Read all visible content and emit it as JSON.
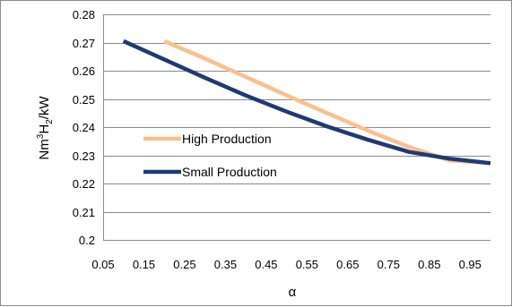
{
  "chart_data": {
    "type": "line",
    "title": "",
    "xlabel": "α",
    "ylabel": "Nm³H₂/kW",
    "ylabel_parts": {
      "base": "Nm",
      "sup": "3",
      "mid": "H",
      "sub": "2",
      "tail": "/kW"
    },
    "xlim": [
      0.05,
      1.0
    ],
    "ylim": [
      0.2,
      0.28
    ],
    "x_ticks": [
      "0.05",
      "0.15",
      "0.25",
      "0.35",
      "0.45",
      "0.55",
      "0.65",
      "0.75",
      "0.85",
      "0.95"
    ],
    "x_tick_values": [
      0.05,
      0.15,
      0.25,
      0.35,
      0.45,
      0.55,
      0.65,
      0.75,
      0.85,
      0.95
    ],
    "y_ticks": [
      "0.2",
      "0.21",
      "0.22",
      "0.23",
      "0.24",
      "0.25",
      "0.26",
      "0.27",
      "0.28"
    ],
    "y_tick_values": [
      0.2,
      0.21,
      0.22,
      0.23,
      0.24,
      0.25,
      0.26,
      0.27,
      0.28
    ],
    "grid": "horizontal",
    "legend_position": "inside-left",
    "series": [
      {
        "name": "High Production",
        "color": "#F9C08F",
        "x": [
          0.2,
          0.3,
          0.4,
          0.5,
          0.6,
          0.7,
          0.8,
          0.9,
          1.0
        ],
        "y": [
          0.2705,
          0.2643,
          0.2578,
          0.2513,
          0.2449,
          0.2387,
          0.233,
          0.2282,
          0.2272
        ]
      },
      {
        "name": "Small Production",
        "color": "#1F3A73",
        "x": [
          0.1,
          0.2,
          0.3,
          0.4,
          0.5,
          0.6,
          0.7,
          0.8,
          0.9,
          1.0
        ],
        "y": [
          0.2705,
          0.264,
          0.2575,
          0.2512,
          0.2455,
          0.2402,
          0.2355,
          0.2312,
          0.2288,
          0.2272
        ]
      }
    ]
  }
}
